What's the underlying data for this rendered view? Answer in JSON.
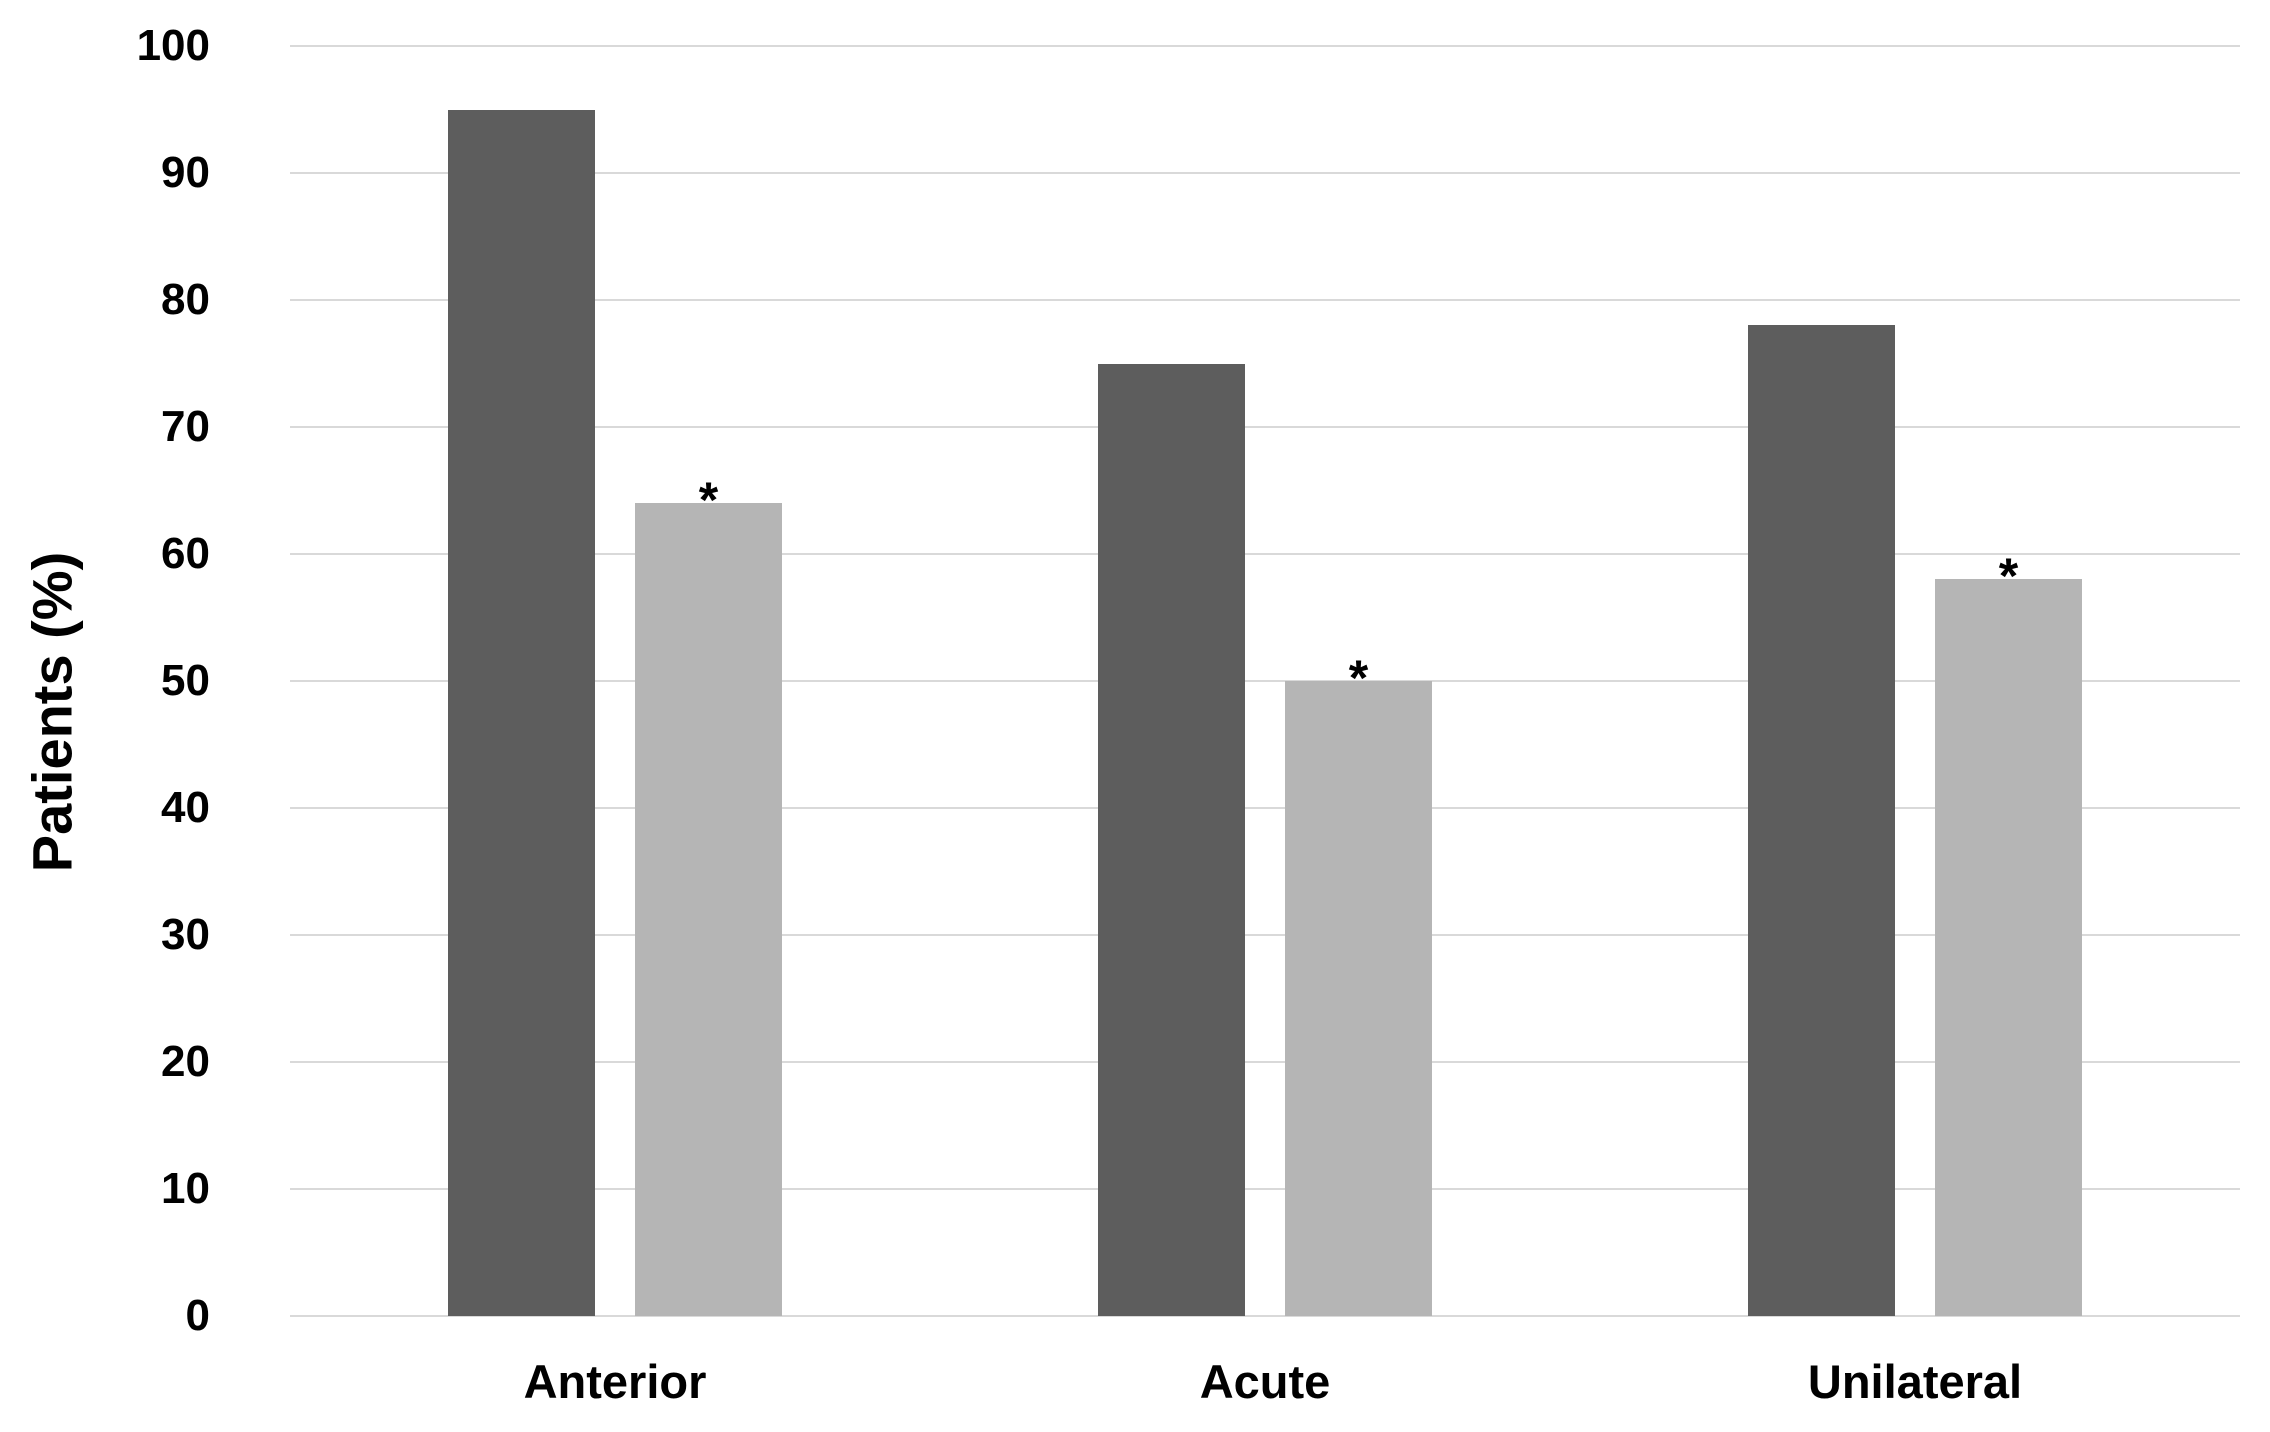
{
  "chart_data": {
    "type": "bar",
    "ylabel": "Patients (%)",
    "categories": [
      "Anterior",
      "Acute",
      "Unilateral"
    ],
    "series": [
      {
        "id": "dark-gray",
        "color": "#5d5d5d",
        "values": [
          95,
          75,
          78
        ],
        "significance_marked": [
          false,
          false,
          false
        ]
      },
      {
        "id": "light-gray",
        "color": "#b5b5b5",
        "values": [
          64,
          50,
          58
        ],
        "significance_marked": [
          true,
          true,
          true
        ]
      }
    ],
    "significance_marker": "*",
    "ylim": [
      0,
      100
    ],
    "yticks": [
      0,
      10,
      20,
      30,
      40,
      50,
      60,
      70,
      80,
      90,
      100
    ],
    "grid": true,
    "gridline_color": "#d9d9d9",
    "legend_position": "none",
    "background_color": "#ffffff",
    "text_color": "#000000"
  }
}
